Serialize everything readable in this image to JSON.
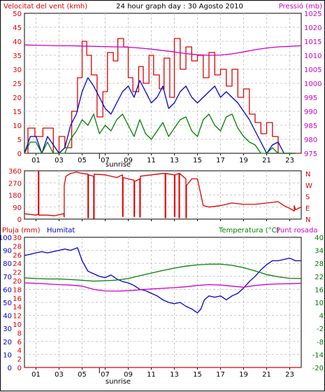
{
  "title": "24 hour graph day : 30 Agosto 2010",
  "colors": {
    "red": "#e00000",
    "blue": "#0000cc",
    "green": "#008000",
    "magenta": "#cc00cc",
    "grid": "#c8c8c8",
    "frame": "#000000"
  },
  "x_ticks": [
    "01",
    "03",
    "05",
    "07",
    "09",
    "11",
    "13",
    "15",
    "17",
    "19",
    "21",
    "23"
  ],
  "sunrise_label": "sunrise",
  "chart_data": [
    {
      "type": "line",
      "id": "wind",
      "left_label": "Velocitat del vent (kmh)",
      "right_label": "Pressió (mb)",
      "y_ticks_left": [
        0,
        5,
        10,
        15,
        20,
        25,
        30,
        35,
        40,
        45,
        50
      ],
      "y_ticks_left_labels": [
        "0",
        "5",
        "10",
        "15",
        "20",
        "25",
        "30",
        "35",
        "40",
        "45",
        "50"
      ],
      "y_ticks_right_labels": [
        "975",
        "980",
        "985",
        "990",
        "995",
        "1000",
        "1005",
        "1010",
        "1015",
        "1020",
        "1025"
      ],
      "ylim_left": [
        0,
        50
      ],
      "ylim_right": [
        975,
        1025
      ],
      "series": [
        {
          "color": "red",
          "axis": "left",
          "x": [
            0.0,
            0.3,
            0.3,
            0.9,
            0.9,
            1.6,
            1.6,
            2.5,
            2.5,
            3.0,
            3.0,
            3.5,
            3.5,
            4.1,
            4.1,
            4.6,
            4.6,
            5.0,
            5.0,
            5.4,
            5.4,
            5.8,
            5.8,
            6.3,
            6.3,
            6.8,
            6.8,
            7.2,
            7.2,
            7.7,
            7.7,
            8.1,
            8.1,
            8.6,
            8.6,
            9.0,
            9.0,
            9.4,
            9.4,
            9.9,
            9.9,
            10.3,
            10.3,
            10.8,
            10.8,
            11.2,
            11.2,
            11.7,
            11.7,
            12.1,
            12.1,
            12.6,
            12.6,
            13.0,
            13.0,
            13.5,
            13.5,
            14.0,
            14.0,
            14.5,
            14.5,
            15.0,
            15.0,
            15.5,
            15.5,
            16.0,
            16.0,
            16.5,
            16.5,
            17.0,
            17.0,
            17.5,
            17.5,
            18.0,
            18.0,
            18.5,
            18.5,
            19.0,
            19.0,
            19.5,
            19.5,
            20.0,
            20.0,
            20.5,
            20.5,
            21.0,
            21.0,
            21.5,
            21.5,
            22.0,
            22.0,
            23.0,
            23.0,
            24.0
          ],
          "y": [
            0,
            0,
            9,
            9,
            6,
            6,
            9,
            9,
            0,
            0,
            6,
            6,
            2,
            2,
            15,
            15,
            27,
            27,
            40,
            40,
            35,
            35,
            28,
            28,
            13,
            13,
            22,
            22,
            36,
            36,
            33,
            33,
            41,
            41,
            38,
            38,
            27,
            27,
            22,
            22,
            31,
            31,
            25,
            25,
            35,
            35,
            28,
            28,
            23,
            23,
            34,
            34,
            20,
            20,
            41,
            41,
            30,
            30,
            38,
            38,
            33,
            33,
            35,
            35,
            27,
            27,
            36,
            36,
            28,
            28,
            30,
            30,
            24,
            24,
            30,
            30,
            20,
            20,
            23,
            23,
            14,
            14,
            11,
            11,
            7,
            7,
            11,
            11,
            6,
            6,
            0,
            0,
            0,
            0
          ]
        },
        {
          "color": "blue",
          "axis": "left",
          "x": [
            0.0,
            0.5,
            1.0,
            1.5,
            2.0,
            2.5,
            3.0,
            3.5,
            4.0,
            4.5,
            5.0,
            5.5,
            6.0,
            6.5,
            7.0,
            7.5,
            8.0,
            8.5,
            9.0,
            9.5,
            10.0,
            10.5,
            11.0,
            11.5,
            12.0,
            12.5,
            13.0,
            13.5,
            14.0,
            14.5,
            15.0,
            15.5,
            16.0,
            16.5,
            17.0,
            17.5,
            18.0,
            18.5,
            19.0,
            19.5,
            20.0,
            20.5,
            21.0,
            21.5,
            22.0,
            22.5,
            23.0,
            23.5
          ],
          "y": [
            0,
            6,
            6,
            0,
            6,
            3,
            0,
            2,
            10,
            14,
            22,
            27,
            24,
            20,
            16,
            14,
            18,
            22,
            24,
            20,
            26,
            22,
            18,
            20,
            24,
            16,
            18,
            22,
            24,
            20,
            18,
            20,
            22,
            24,
            20,
            22,
            20,
            18,
            15,
            12,
            8,
            4,
            0,
            3,
            4,
            0,
            0,
            0
          ]
        },
        {
          "color": "green",
          "axis": "left",
          "x": [
            0.0,
            0.5,
            1.0,
            1.5,
            2.0,
            2.5,
            3.0,
            3.5,
            4.0,
            4.5,
            5.0,
            5.5,
            6.0,
            6.5,
            7.0,
            7.5,
            8.0,
            8.5,
            9.0,
            9.5,
            10.0,
            10.5,
            11.0,
            11.5,
            12.0,
            12.5,
            13.0,
            13.5,
            14.0,
            14.5,
            15.0,
            15.5,
            16.0,
            16.5,
            17.0,
            17.5,
            18.0,
            18.5,
            19.0,
            19.5,
            20.0,
            20.5,
            21.0,
            21.5,
            22.0,
            22.5,
            23.0,
            23.5
          ],
          "y": [
            0,
            4,
            4,
            0,
            4,
            0,
            0,
            0,
            5,
            8,
            12,
            10,
            14,
            7,
            10,
            8,
            12,
            14,
            10,
            6,
            12,
            7,
            5,
            8,
            11,
            6,
            9,
            12,
            13,
            8,
            6,
            12,
            14,
            10,
            8,
            13,
            14,
            9,
            6,
            4,
            3,
            0,
            0,
            2,
            0,
            0,
            0,
            0
          ]
        },
        {
          "color": "magenta",
          "axis": "right",
          "x": [
            0,
            1,
            2,
            3,
            4,
            5,
            6,
            7,
            8,
            9,
            10,
            11,
            12,
            13,
            14,
            15,
            16,
            17,
            18,
            19,
            20,
            21,
            22,
            23,
            24
          ],
          "y": [
            1013.7,
            1013.6,
            1013.5,
            1013.4,
            1013.4,
            1013.3,
            1013.2,
            1013.1,
            1013.0,
            1012.9,
            1012.6,
            1012.2,
            1011.7,
            1011.2,
            1010.6,
            1010.2,
            1010.0,
            1010.1,
            1010.5,
            1011.2,
            1012.0,
            1012.6,
            1013.0,
            1013.2,
            1013.4
          ]
        }
      ]
    },
    {
      "type": "line",
      "id": "direction",
      "y_ticks_left": [
        0,
        90,
        180,
        270,
        360
      ],
      "y_ticks_left_labels": [
        "0",
        "90",
        "180",
        "270",
        "360"
      ],
      "right_labels": [
        "N",
        "W",
        "S",
        "E",
        "N"
      ],
      "ylim_left": [
        0,
        360
      ],
      "series": [
        {
          "color": "red",
          "axis": "left",
          "x": [
            0.0,
            1.0,
            1.2,
            1.2,
            1.25,
            1.25,
            2.0,
            2.6,
            3.4,
            3.4,
            3.45,
            3.45,
            3.6,
            4.0,
            4.5,
            5.0,
            5.5,
            5.5,
            5.55,
            5.55,
            6.0,
            6.0,
            6.05,
            6.05,
            7.0,
            7.5,
            8.0,
            8.5,
            8.5,
            8.55,
            8.55,
            9.0,
            9.5,
            9.5,
            9.55,
            9.55,
            10.0,
            10.0,
            10.05,
            10.05,
            11.0,
            12.0,
            12.2,
            12.2,
            12.25,
            12.25,
            13.0,
            13.0,
            13.05,
            13.05,
            13.4,
            13.4,
            13.45,
            13.45,
            14.0,
            14.0,
            14.05,
            14.05,
            14.5,
            15.0,
            15.5,
            16.0,
            17.0,
            18.0,
            19.0,
            20.0,
            21.0,
            22.0,
            22.5,
            23.0,
            23.4,
            23.4,
            23.5,
            24.0
          ],
          "y": [
            40,
            30,
            35,
            360,
            360,
            30,
            30,
            25,
            40,
            40,
            15,
            250,
            320,
            340,
            350,
            340,
            335,
            10,
            10,
            330,
            320,
            5,
            5,
            335,
            330,
            320,
            310,
            330,
            20,
            20,
            310,
            300,
            290,
            20,
            20,
            280,
            300,
            15,
            15,
            320,
            330,
            340,
            340,
            10,
            10,
            340,
            330,
            20,
            20,
            330,
            340,
            10,
            10,
            340,
            300,
            10,
            10,
            250,
            300,
            300,
            100,
            90,
            100,
            120,
            110,
            110,
            120,
            130,
            100,
            80,
            60,
            100,
            70,
            90
          ]
        }
      ]
    },
    {
      "type": "line",
      "id": "temp",
      "left_label_rain": "Pluja (mm)",
      "left_label_hum": "Humitat",
      "right_label_temp": "Temperatura (°C)",
      "right_label_dew": "Punt rosada",
      "y_ticks_rain_labels": [
        "0",
        "2",
        "4",
        "6",
        "8",
        "10",
        "12",
        "14",
        "16",
        "18",
        "20",
        "22",
        "24",
        "26",
        "28",
        "30"
      ],
      "y_ticks_hum_labels": [
        "0",
        "10",
        "20",
        "30",
        "40",
        "50",
        "60",
        "70",
        "80",
        "90",
        "100"
      ],
      "y_ticks_temp_labels": [
        "-20",
        "-14",
        "-8",
        "-2",
        "4",
        "10",
        "16",
        "22",
        "28",
        "34",
        "40"
      ],
      "ylim_hum": [
        0,
        100
      ],
      "ylim_temp": [
        -20,
        40
      ],
      "series": [
        {
          "color": "blue",
          "axis": "hum",
          "x": [
            0,
            0.5,
            1,
            1.5,
            2,
            2.5,
            3,
            3.5,
            4,
            4.3,
            4.6,
            5,
            5.5,
            6,
            6.5,
            7,
            7.5,
            8,
            8.5,
            9,
            9.5,
            10,
            10.5,
            11,
            11.5,
            12,
            12.5,
            13,
            13.5,
            14,
            14.5,
            15,
            15.3,
            15.6,
            16,
            16.5,
            17,
            17.5,
            18,
            18.5,
            19,
            19.5,
            20,
            20.5,
            21,
            21.5,
            22,
            22.5,
            23,
            23.5,
            24
          ],
          "y": [
            86,
            87,
            88,
            89,
            88,
            89,
            90,
            91,
            90,
            91,
            92,
            82,
            74,
            72,
            70,
            69,
            71,
            68,
            66,
            65,
            63,
            60,
            59,
            57,
            55,
            52,
            50,
            49,
            50,
            47,
            45,
            42,
            45,
            52,
            55,
            54,
            55,
            52,
            55,
            57,
            61,
            66,
            70,
            75,
            79,
            82,
            82,
            83,
            84,
            82,
            82
          ]
        },
        {
          "color": "green",
          "axis": "temp",
          "x": [
            0,
            1,
            2,
            3,
            4,
            5,
            6,
            7,
            8,
            9,
            10,
            11,
            12,
            13,
            14,
            15,
            16,
            17,
            18,
            19,
            20,
            21,
            22,
            23,
            24
          ],
          "y": [
            21.3,
            21.0,
            20.8,
            20.8,
            20.5,
            20.2,
            19.8,
            20.0,
            20.3,
            21.0,
            22.3,
            23.5,
            24.7,
            25.8,
            26.7,
            27.3,
            27.6,
            27.6,
            27.1,
            26.0,
            24.5,
            22.8,
            21.8,
            21.1,
            21.0
          ]
        },
        {
          "color": "magenta",
          "axis": "temp",
          "x": [
            0,
            1,
            2,
            3,
            4,
            5,
            6,
            7,
            8,
            9,
            10,
            11,
            12,
            13,
            14,
            15,
            16,
            17,
            18,
            19,
            20,
            21,
            22,
            23,
            24
          ],
          "y": [
            19.0,
            18.8,
            18.5,
            18.2,
            18.0,
            17.5,
            16.0,
            15.3,
            15.2,
            15.4,
            15.8,
            16.2,
            16.5,
            16.8,
            17.2,
            17.8,
            18.2,
            18.0,
            17.5,
            17.0,
            17.8,
            18.3,
            18.5,
            18.6,
            18.8
          ]
        },
        {
          "color": "red",
          "axis": "hum",
          "x": [
            0,
            24
          ],
          "y": [
            0,
            0
          ]
        }
      ]
    }
  ]
}
